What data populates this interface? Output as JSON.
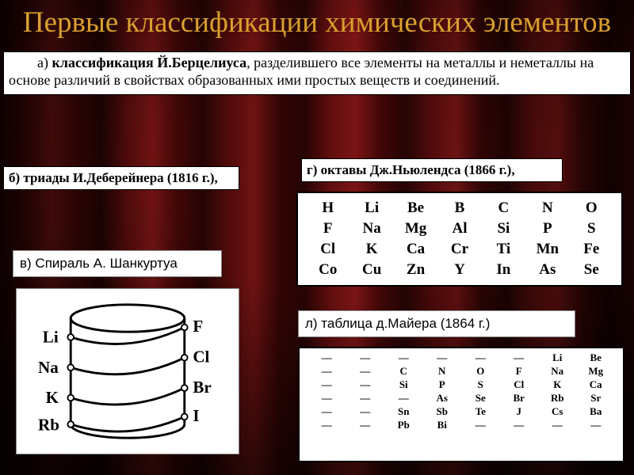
{
  "title": "Первые классификации химических элементов",
  "box_a": {
    "prefix": "а) ",
    "bold": "классификация Й.Берцелиуса",
    "rest": ", разделившего все элементы на металлы и неметаллы на основе различий в свойствах образованных ими простых веществ и соединений."
  },
  "box_b": "б) триады И.Деберейнера (1816 г.),",
  "box_g": "г) октавы Дж.Ньюлендса (1866 г.),",
  "box_v": "в) Спираль А. Шанкуртуа",
  "box_l": "л) таблица д.Майера (1864 г.)",
  "newlands": {
    "rows": [
      [
        "H",
        "Li",
        "Be",
        "B",
        "C",
        "N",
        "O"
      ],
      [
        "F",
        "Na",
        "Mg",
        "Al",
        "Si",
        "P",
        "S"
      ],
      [
        "Cl",
        "K",
        "Ca",
        "Cr",
        "Ti",
        "Mn",
        "Fe"
      ],
      [
        "Co",
        "Cu",
        "Zn",
        "Y",
        "In",
        "As",
        "Se"
      ]
    ]
  },
  "spiral": {
    "left_labels": [
      "Li",
      "Na",
      "K",
      "Rb"
    ],
    "right_labels": [
      "F",
      "Cl",
      "Br",
      "I"
    ]
  },
  "meyer": {
    "columns": [
      [
        "—",
        "C",
        "Si",
        "—",
        "Sn",
        "Pb"
      ],
      [
        "—",
        "N",
        "P",
        "As",
        "Sb",
        "Bi"
      ],
      [
        "—",
        "O",
        "S",
        "Se",
        "Te",
        "—"
      ],
      [
        "—",
        "F",
        "Cl",
        "Br",
        "J",
        "—"
      ],
      [
        "Li",
        "Na",
        "K",
        "Rb",
        "Cs",
        "—"
      ],
      [
        "Be",
        "Mg",
        "Ca",
        "Sr",
        "Ba",
        "—"
      ]
    ]
  },
  "colors": {
    "title": "#d8a030",
    "bg": "#000000",
    "paper": "#ffffff"
  }
}
